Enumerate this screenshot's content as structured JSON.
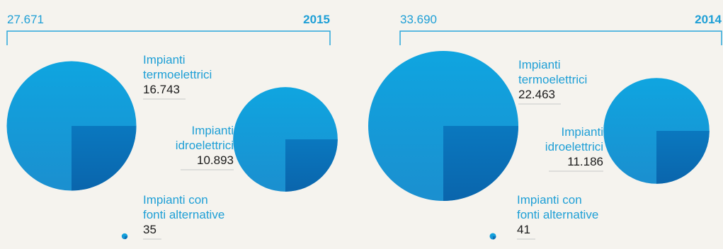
{
  "colors": {
    "accent": "#2aa8dc",
    "label": "#1e9fd6",
    "value": "#1a1a1a",
    "year": "#1e9fd6",
    "connector": "#c8c8c8",
    "pie_light": "#1aa6df",
    "pie_dark": "#0a6db6"
  },
  "chart_data": [
    {
      "type": "pie",
      "year": "2015",
      "total": "27.671",
      "series": [
        {
          "name": "Impianti termoelettrici",
          "label_lines": [
            "Impianti",
            "termoelettrici"
          ],
          "value": 16743,
          "value_label": "16.743"
        },
        {
          "name": "Impianti idroelettrici",
          "label_lines": [
            "Impianti",
            "idroelettrici"
          ],
          "value": 10893,
          "value_label": "10.893"
        },
        {
          "name": "Impianti con fonti alternative",
          "label_lines": [
            "Impianti con",
            "fonti alternative"
          ],
          "value": 35,
          "value_label": "35"
        }
      ]
    },
    {
      "type": "pie",
      "year": "2014",
      "total": "33.690",
      "series": [
        {
          "name": "Impianti termoelettrici",
          "label_lines": [
            "Impianti",
            "termoelettrici"
          ],
          "value": 22463,
          "value_label": "22.463"
        },
        {
          "name": "Impianti idroelettrici",
          "label_lines": [
            "Impianti",
            "idroelettrici"
          ],
          "value": 11186,
          "value_label": "11.186"
        },
        {
          "name": "Impianti con fonti alternative",
          "label_lines": [
            "Impianti con",
            "fonti alternative"
          ],
          "value": 41,
          "value_label": "41"
        }
      ]
    }
  ]
}
